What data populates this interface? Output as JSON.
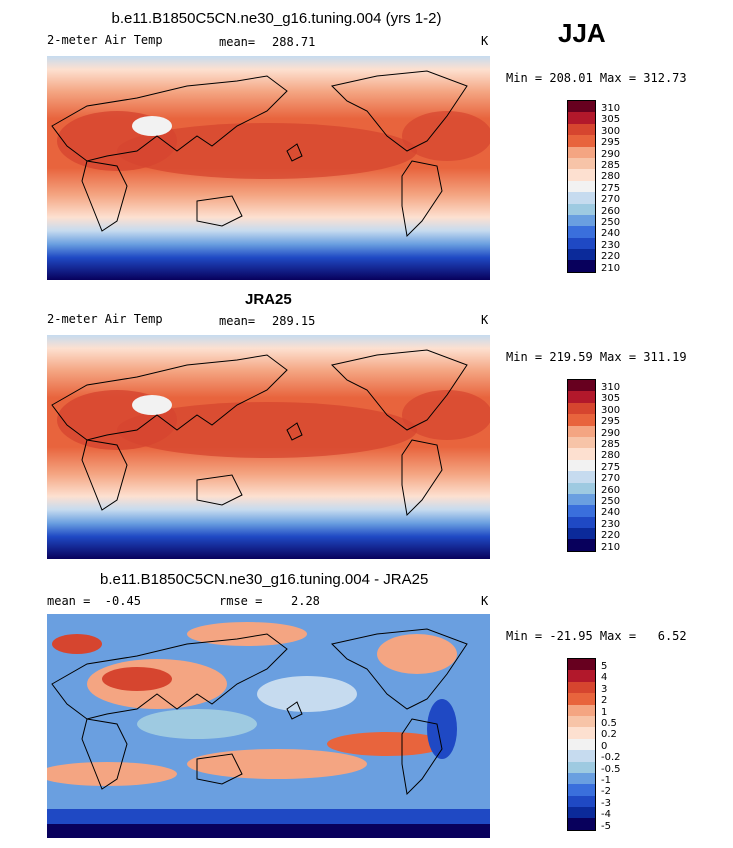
{
  "season": "JJA",
  "panels": [
    {
      "title": "b.e11.B1850C5CN.ne30_g16.tuning.004 (yrs 1-2)",
      "left_label": "2-meter Air Temp",
      "stat_label": "mean=",
      "stat_value": "288.71",
      "units": "K",
      "range_text": "Min = 208.01 Max = 312.73",
      "colorbar": [
        "310",
        "305",
        "300",
        "295",
        "290",
        "285",
        "280",
        "275",
        "270",
        "260",
        "250",
        "240",
        "230",
        "220",
        "210"
      ]
    },
    {
      "title": "JRA25",
      "left_label": "2-meter Air Temp",
      "stat_label": "mean=",
      "stat_value": "289.15",
      "units": "K",
      "range_text": "Min = 219.59 Max = 311.19",
      "colorbar": [
        "310",
        "305",
        "300",
        "295",
        "290",
        "285",
        "280",
        "275",
        "270",
        "260",
        "250",
        "240",
        "230",
        "220",
        "210"
      ]
    },
    {
      "title": "b.e11.B1850C5CN.ne30_g16.tuning.004 - JRA25",
      "left_label": "mean =  -0.45",
      "stat_label": "rmse =",
      "stat_value": "2.28",
      "units": "K",
      "range_text": "Min = -21.95 Max =   6.52",
      "colorbar": [
        "5",
        "4",
        "3",
        "2",
        "1",
        "0.5",
        "0.2",
        "0",
        "-0.2",
        "-0.5",
        "-1",
        "-2",
        "-3",
        "-4",
        "-5"
      ]
    }
  ],
  "colors": {
    "scale": [
      "#67001f",
      "#b2182b",
      "#d6452f",
      "#e8643d",
      "#f4a582",
      "#f7c4a8",
      "#fde0d0",
      "#f2f2f2",
      "#c6dbef",
      "#9ecae1",
      "#6a9fe0",
      "#3a6fdc",
      "#1f49c4",
      "#0b2a9a",
      "#08005c"
    ],
    "land_outline": "#000000"
  }
}
